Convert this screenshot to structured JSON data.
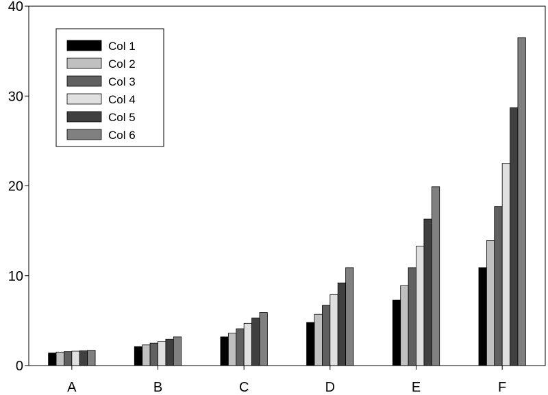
{
  "chart_data": {
    "type": "bar",
    "categories": [
      "A",
      "B",
      "C",
      "D",
      "E",
      "F"
    ],
    "series": [
      {
        "name": "Col 1",
        "color": "#000000",
        "values": [
          1.4,
          2.1,
          3.2,
          4.8,
          7.3,
          10.9
        ]
      },
      {
        "name": "Col 2",
        "color": "#c0c0c0",
        "values": [
          1.5,
          2.3,
          3.6,
          5.7,
          8.9,
          13.9
        ]
      },
      {
        "name": "Col 3",
        "color": "#606060",
        "values": [
          1.55,
          2.5,
          4.1,
          6.7,
          10.9,
          17.7
        ]
      },
      {
        "name": "Col 4",
        "color": "#e0e0e0",
        "values": [
          1.6,
          2.7,
          4.7,
          7.9,
          13.3,
          22.5
        ]
      },
      {
        "name": "Col 5",
        "color": "#404040",
        "values": [
          1.65,
          2.95,
          5.3,
          9.2,
          16.3,
          28.7
        ]
      },
      {
        "name": "Col 6",
        "color": "#808080",
        "values": [
          1.7,
          3.2,
          5.9,
          10.9,
          19.9,
          36.5
        ]
      }
    ],
    "yticks": [
      0,
      10,
      20,
      30,
      40
    ],
    "ylim": [
      0,
      40
    ],
    "title": "",
    "xlabel": "",
    "ylabel": "",
    "grid": false,
    "legend_position": "top-left"
  }
}
